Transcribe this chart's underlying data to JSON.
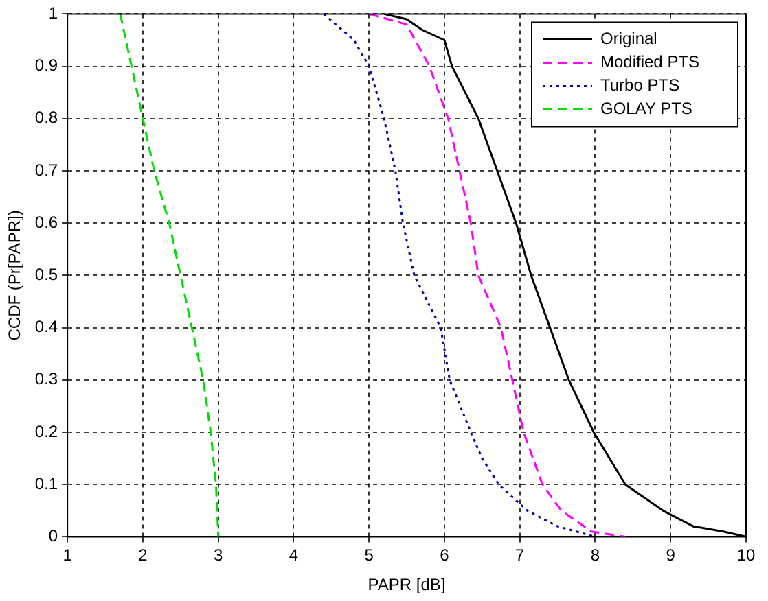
{
  "chart_data": {
    "type": "line",
    "xlabel": "PAPR [dB]",
    "ylabel": "CCDF (Pr[PAPR])",
    "xlim": [
      1,
      10
    ],
    "ylim": [
      0,
      1
    ],
    "xticks": [
      1,
      2,
      3,
      4,
      5,
      6,
      7,
      8,
      9,
      10
    ],
    "yticks": [
      0,
      0.1,
      0.2,
      0.3,
      0.4,
      0.5,
      0.6,
      0.7,
      0.8,
      0.9,
      1
    ],
    "grid": true,
    "legend": "top right",
    "marker": "none",
    "series": [
      {
        "name": "Original",
        "color": "#000000",
        "line_style": "solid",
        "x": [
          5.2,
          5.5,
          5.7,
          6.0,
          6.1,
          6.45,
          6.7,
          6.95,
          7.15,
          7.4,
          7.65,
          7.98,
          8.4,
          8.9,
          9.3,
          9.7,
          10
        ],
        "values": [
          1,
          0.99,
          0.97,
          0.95,
          0.9,
          0.8,
          0.7,
          0.6,
          0.5,
          0.4,
          0.3,
          0.2,
          0.1,
          0.05,
          0.02,
          0.01,
          0
        ]
      },
      {
        "name": "Modified PTS",
        "color": "#ff00ff",
        "line_style": "dashed",
        "x": [
          5.0,
          5.5,
          5.8,
          6.05,
          6.2,
          6.35,
          6.45,
          6.75,
          6.9,
          7.05,
          7.3,
          7.55,
          7.95,
          8.4
        ],
        "values": [
          1,
          0.98,
          0.9,
          0.8,
          0.7,
          0.6,
          0.5,
          0.4,
          0.3,
          0.2,
          0.1,
          0.05,
          0.01,
          0
        ]
      },
      {
        "name": "Turbo PTS",
        "color": "#0000aa",
        "line_style": "dotted",
        "x": [
          4.4,
          4.8,
          5.0,
          5.2,
          5.35,
          5.45,
          5.6,
          5.95,
          6.07,
          6.35,
          6.5,
          6.72,
          7.1,
          7.5,
          8.0
        ],
        "values": [
          1,
          0.95,
          0.9,
          0.8,
          0.7,
          0.6,
          0.5,
          0.4,
          0.3,
          0.2,
          0.15,
          0.1,
          0.05,
          0.02,
          0
        ]
      },
      {
        "name": "GOLAY PTS",
        "color": "#00dd00",
        "line_style": "dashed",
        "x": [
          1.7,
          1.85,
          2.0,
          2.15,
          2.35,
          2.5,
          2.65,
          2.8,
          2.9,
          2.97,
          3.0
        ],
        "values": [
          1,
          0.9,
          0.8,
          0.7,
          0.6,
          0.5,
          0.4,
          0.3,
          0.2,
          0.1,
          0
        ]
      }
    ]
  }
}
